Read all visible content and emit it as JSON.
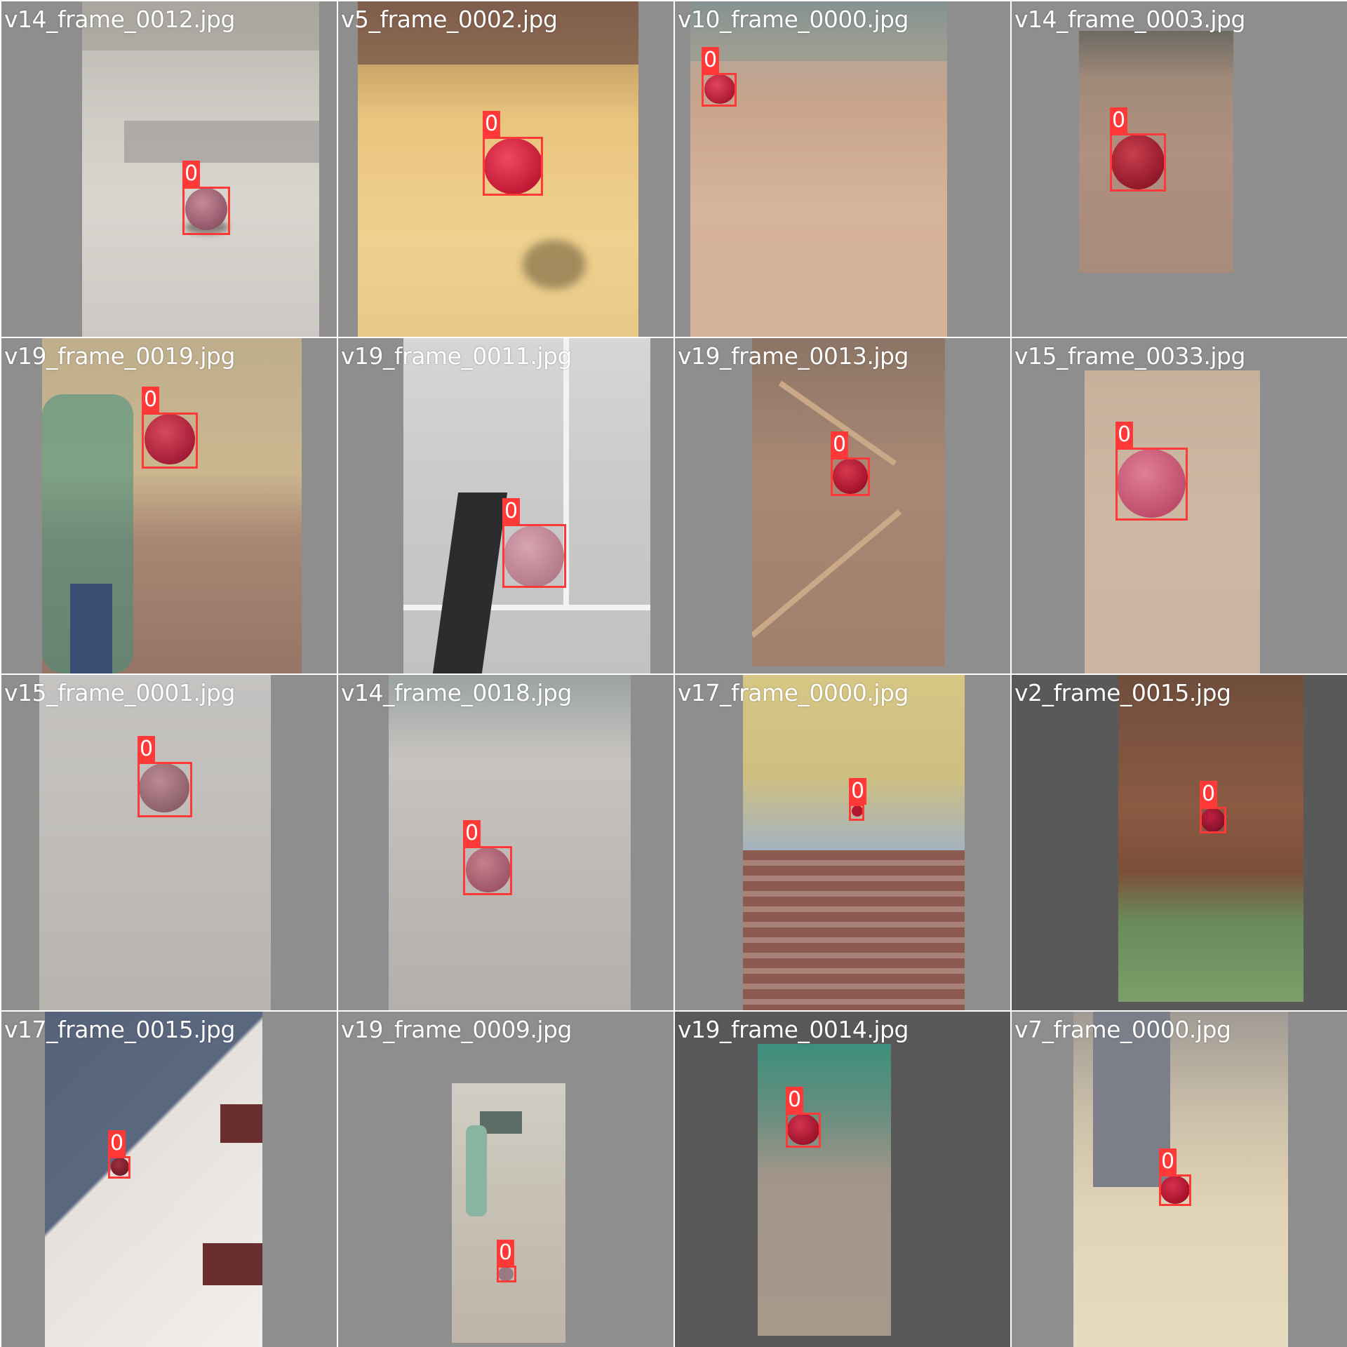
{
  "colors": {
    "box": "#ff3838",
    "pad_light": "#8e8e8e",
    "pad_dark": "#595959",
    "label_text": "#ffffff"
  },
  "tiles": [
    {
      "filename": "v14_frame_0012.jpg",
      "class_label": "0"
    },
    {
      "filename": "v5_frame_0002.jpg",
      "class_label": "0"
    },
    {
      "filename": "v10_frame_0000.jpg",
      "class_label": "0"
    },
    {
      "filename": "v14_frame_0003.jpg",
      "class_label": "0"
    },
    {
      "filename": "v19_frame_0019.jpg",
      "class_label": "0"
    },
    {
      "filename": "v19_frame_0011.jpg",
      "class_label": "0"
    },
    {
      "filename": "v19_frame_0013.jpg",
      "class_label": "0"
    },
    {
      "filename": "v15_frame_0033.jpg",
      "class_label": "0"
    },
    {
      "filename": "v15_frame_0001.jpg",
      "class_label": "0"
    },
    {
      "filename": "v14_frame_0018.jpg",
      "class_label": "0"
    },
    {
      "filename": "v17_frame_0000.jpg",
      "class_label": "0"
    },
    {
      "filename": "v2_frame_0015.jpg",
      "class_label": "0"
    },
    {
      "filename": "v17_frame_0015.jpg",
      "class_label": "0"
    },
    {
      "filename": "v19_frame_0009.jpg",
      "class_label": "0"
    },
    {
      "filename": "v19_frame_0014.jpg",
      "class_label": "0"
    },
    {
      "filename": "v7_frame_0000.jpg",
      "class_label": "0"
    }
  ]
}
